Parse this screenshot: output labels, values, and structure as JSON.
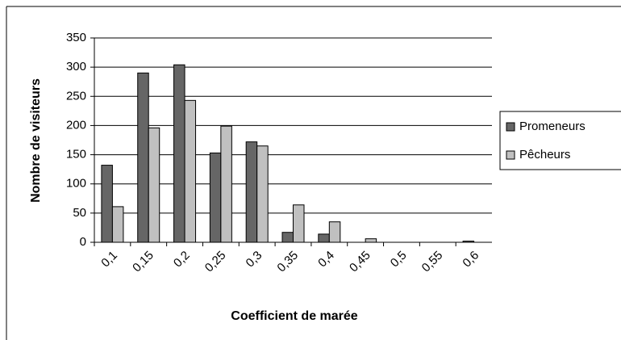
{
  "chart_data": {
    "type": "bar",
    "x_label": "Coefficient de marée",
    "y_label": "Nombre de visiteurs",
    "categories": [
      "0,1",
      "0,15",
      "0,2",
      "0,25",
      "0,3",
      "0,35",
      "0,4",
      "0,45",
      "0,5",
      "0,55",
      "0,6"
    ],
    "series": [
      {
        "name": "Promeneurs",
        "color": "#666666",
        "values": [
          132,
          290,
          304,
          153,
          172,
          17,
          14,
          0,
          0,
          0,
          2
        ]
      },
      {
        "name": "Pêcheurs",
        "color": "#c0c0c0",
        "values": [
          61,
          196,
          243,
          199,
          165,
          64,
          35,
          6,
          0,
          0,
          0
        ]
      }
    ],
    "ylim": [
      0,
      350
    ],
    "yticks": [
      0,
      50,
      100,
      150,
      200,
      250,
      300,
      350
    ],
    "grid": true,
    "legend": "right"
  }
}
